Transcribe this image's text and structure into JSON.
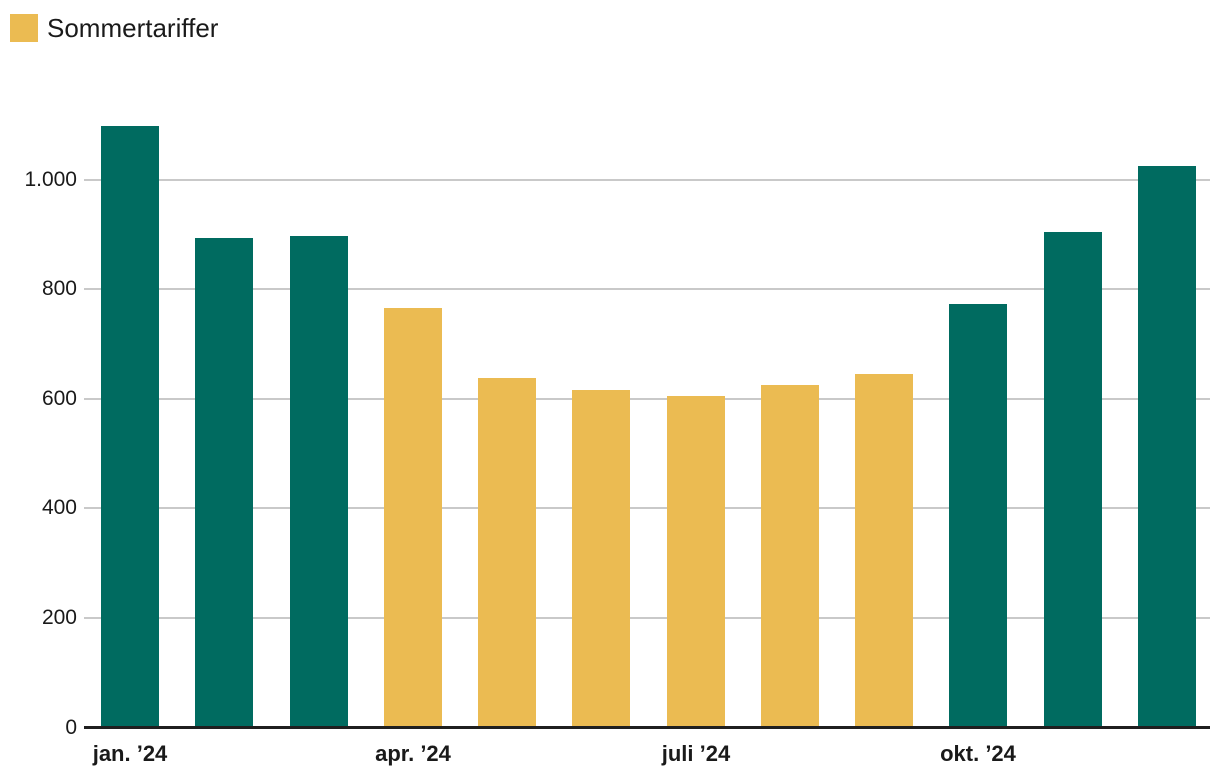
{
  "colors": {
    "summer": "#EBBB52",
    "winter": "#006B60",
    "gridline": "#C9C9C9",
    "axis_line": "#1F1F1F",
    "text": "#1A1A1A",
    "background": "#FFFFFF"
  },
  "chart_data": {
    "type": "bar",
    "title": "",
    "xlabel": "",
    "ylabel": "",
    "legend": [
      {
        "label": "Sommertariffer",
        "color": "#EBBB52",
        "position": "top-left"
      }
    ],
    "values": [
      1095,
      890,
      895,
      762,
      635,
      613,
      602,
      622,
      642,
      770,
      901,
      1022
    ],
    "bar_seasons": [
      "winter",
      "winter",
      "winter",
      "summer",
      "summer",
      "summer",
      "summer",
      "summer",
      "summer",
      "winter",
      "winter",
      "winter"
    ],
    "x_tick_labels": [
      {
        "bar_index": 0,
        "label": "jan. ’24"
      },
      {
        "bar_index": 3,
        "label": "apr. ’24"
      },
      {
        "bar_index": 6,
        "label": "juli ’24"
      },
      {
        "bar_index": 9,
        "label": "okt. ’24"
      }
    ],
    "y_ticks": [
      {
        "value": 0,
        "label": "0"
      },
      {
        "value": 200,
        "label": "200"
      },
      {
        "value": 400,
        "label": "400"
      },
      {
        "value": 600,
        "label": "600"
      },
      {
        "value": 800,
        "label": "800"
      },
      {
        "value": 1000,
        "label": "1.000"
      }
    ],
    "ylim": [
      0,
      1100
    ],
    "grid": "horizontal"
  }
}
